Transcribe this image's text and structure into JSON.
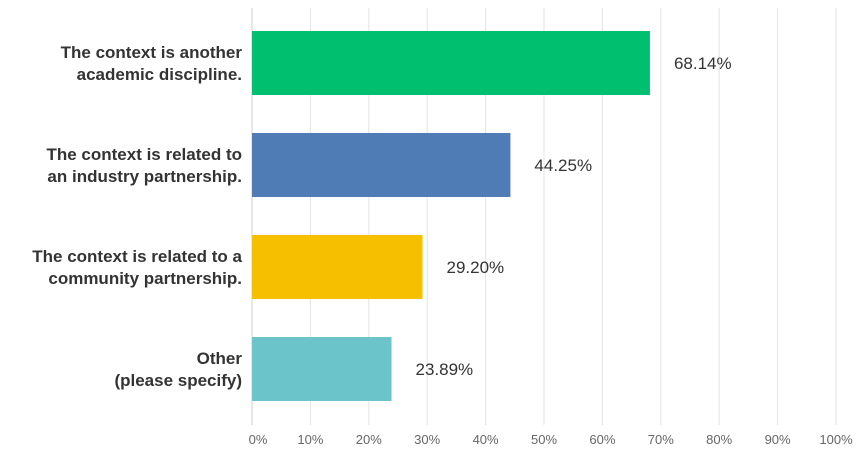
{
  "chart_data": {
    "type": "bar",
    "orientation": "horizontal",
    "categories": [
      [
        "The context is another",
        "academic discipline."
      ],
      [
        "The context is related to",
        "an industry partnership."
      ],
      [
        "The context is related to a",
        "community partnership."
      ],
      [
        "Other",
        "(please specify)"
      ]
    ],
    "values": [
      68.14,
      44.25,
      29.2,
      23.89
    ],
    "value_labels": [
      "68.14%",
      "44.25%",
      "29.20%",
      "23.89%"
    ],
    "colors": [
      "#00BF6F",
      "#507CB6",
      "#F6BF00",
      "#6BC4CA"
    ],
    "xlim": [
      0,
      100
    ],
    "x_ticks": [
      0,
      10,
      20,
      30,
      40,
      50,
      60,
      70,
      80,
      90,
      100
    ],
    "x_tick_labels": [
      "0%",
      "10%",
      "20%",
      "30%",
      "40%",
      "50%",
      "60%",
      "70%",
      "80%",
      "90%",
      "100%"
    ],
    "grid": true,
    "legend": "none"
  }
}
